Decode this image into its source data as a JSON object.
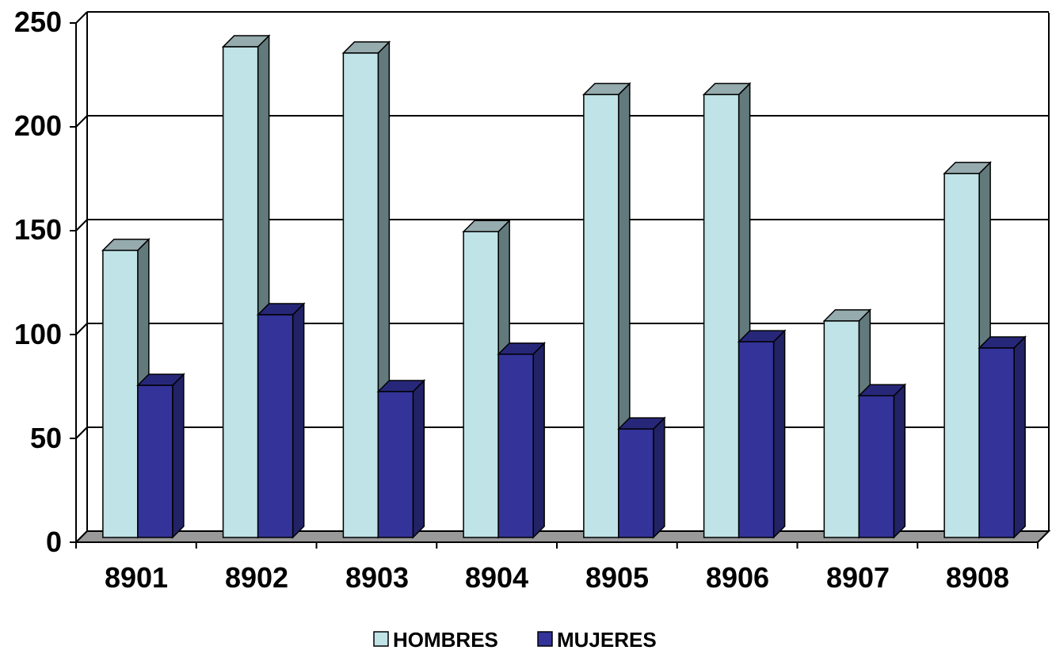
{
  "chart_data": {
    "type": "bar",
    "style": "3d-clustered-column",
    "categories": [
      "8901",
      "8902",
      "8903",
      "8904",
      "8905",
      "8906",
      "8907",
      "8908"
    ],
    "series": [
      {
        "name": "HOMBRES",
        "values": [
          139,
          237,
          234,
          148,
          214,
          214,
          105,
          176
        ],
        "color": "#BFE3E6"
      },
      {
        "name": "MUJERES",
        "values": [
          74,
          108,
          71,
          89,
          53,
          95,
          69,
          92
        ],
        "color": "#333399"
      }
    ],
    "ylim": [
      0,
      250
    ],
    "yticks": [
      "0",
      "50",
      "100",
      "150",
      "200",
      "250"
    ],
    "grid": true,
    "legend_position": "bottom"
  },
  "colors": {
    "floor": "#999999",
    "hombres_side": "#637A7C",
    "hombres_top": "#95ABAD",
    "mujeres_side": "#222266",
    "mujeres_top": "#27277A"
  }
}
